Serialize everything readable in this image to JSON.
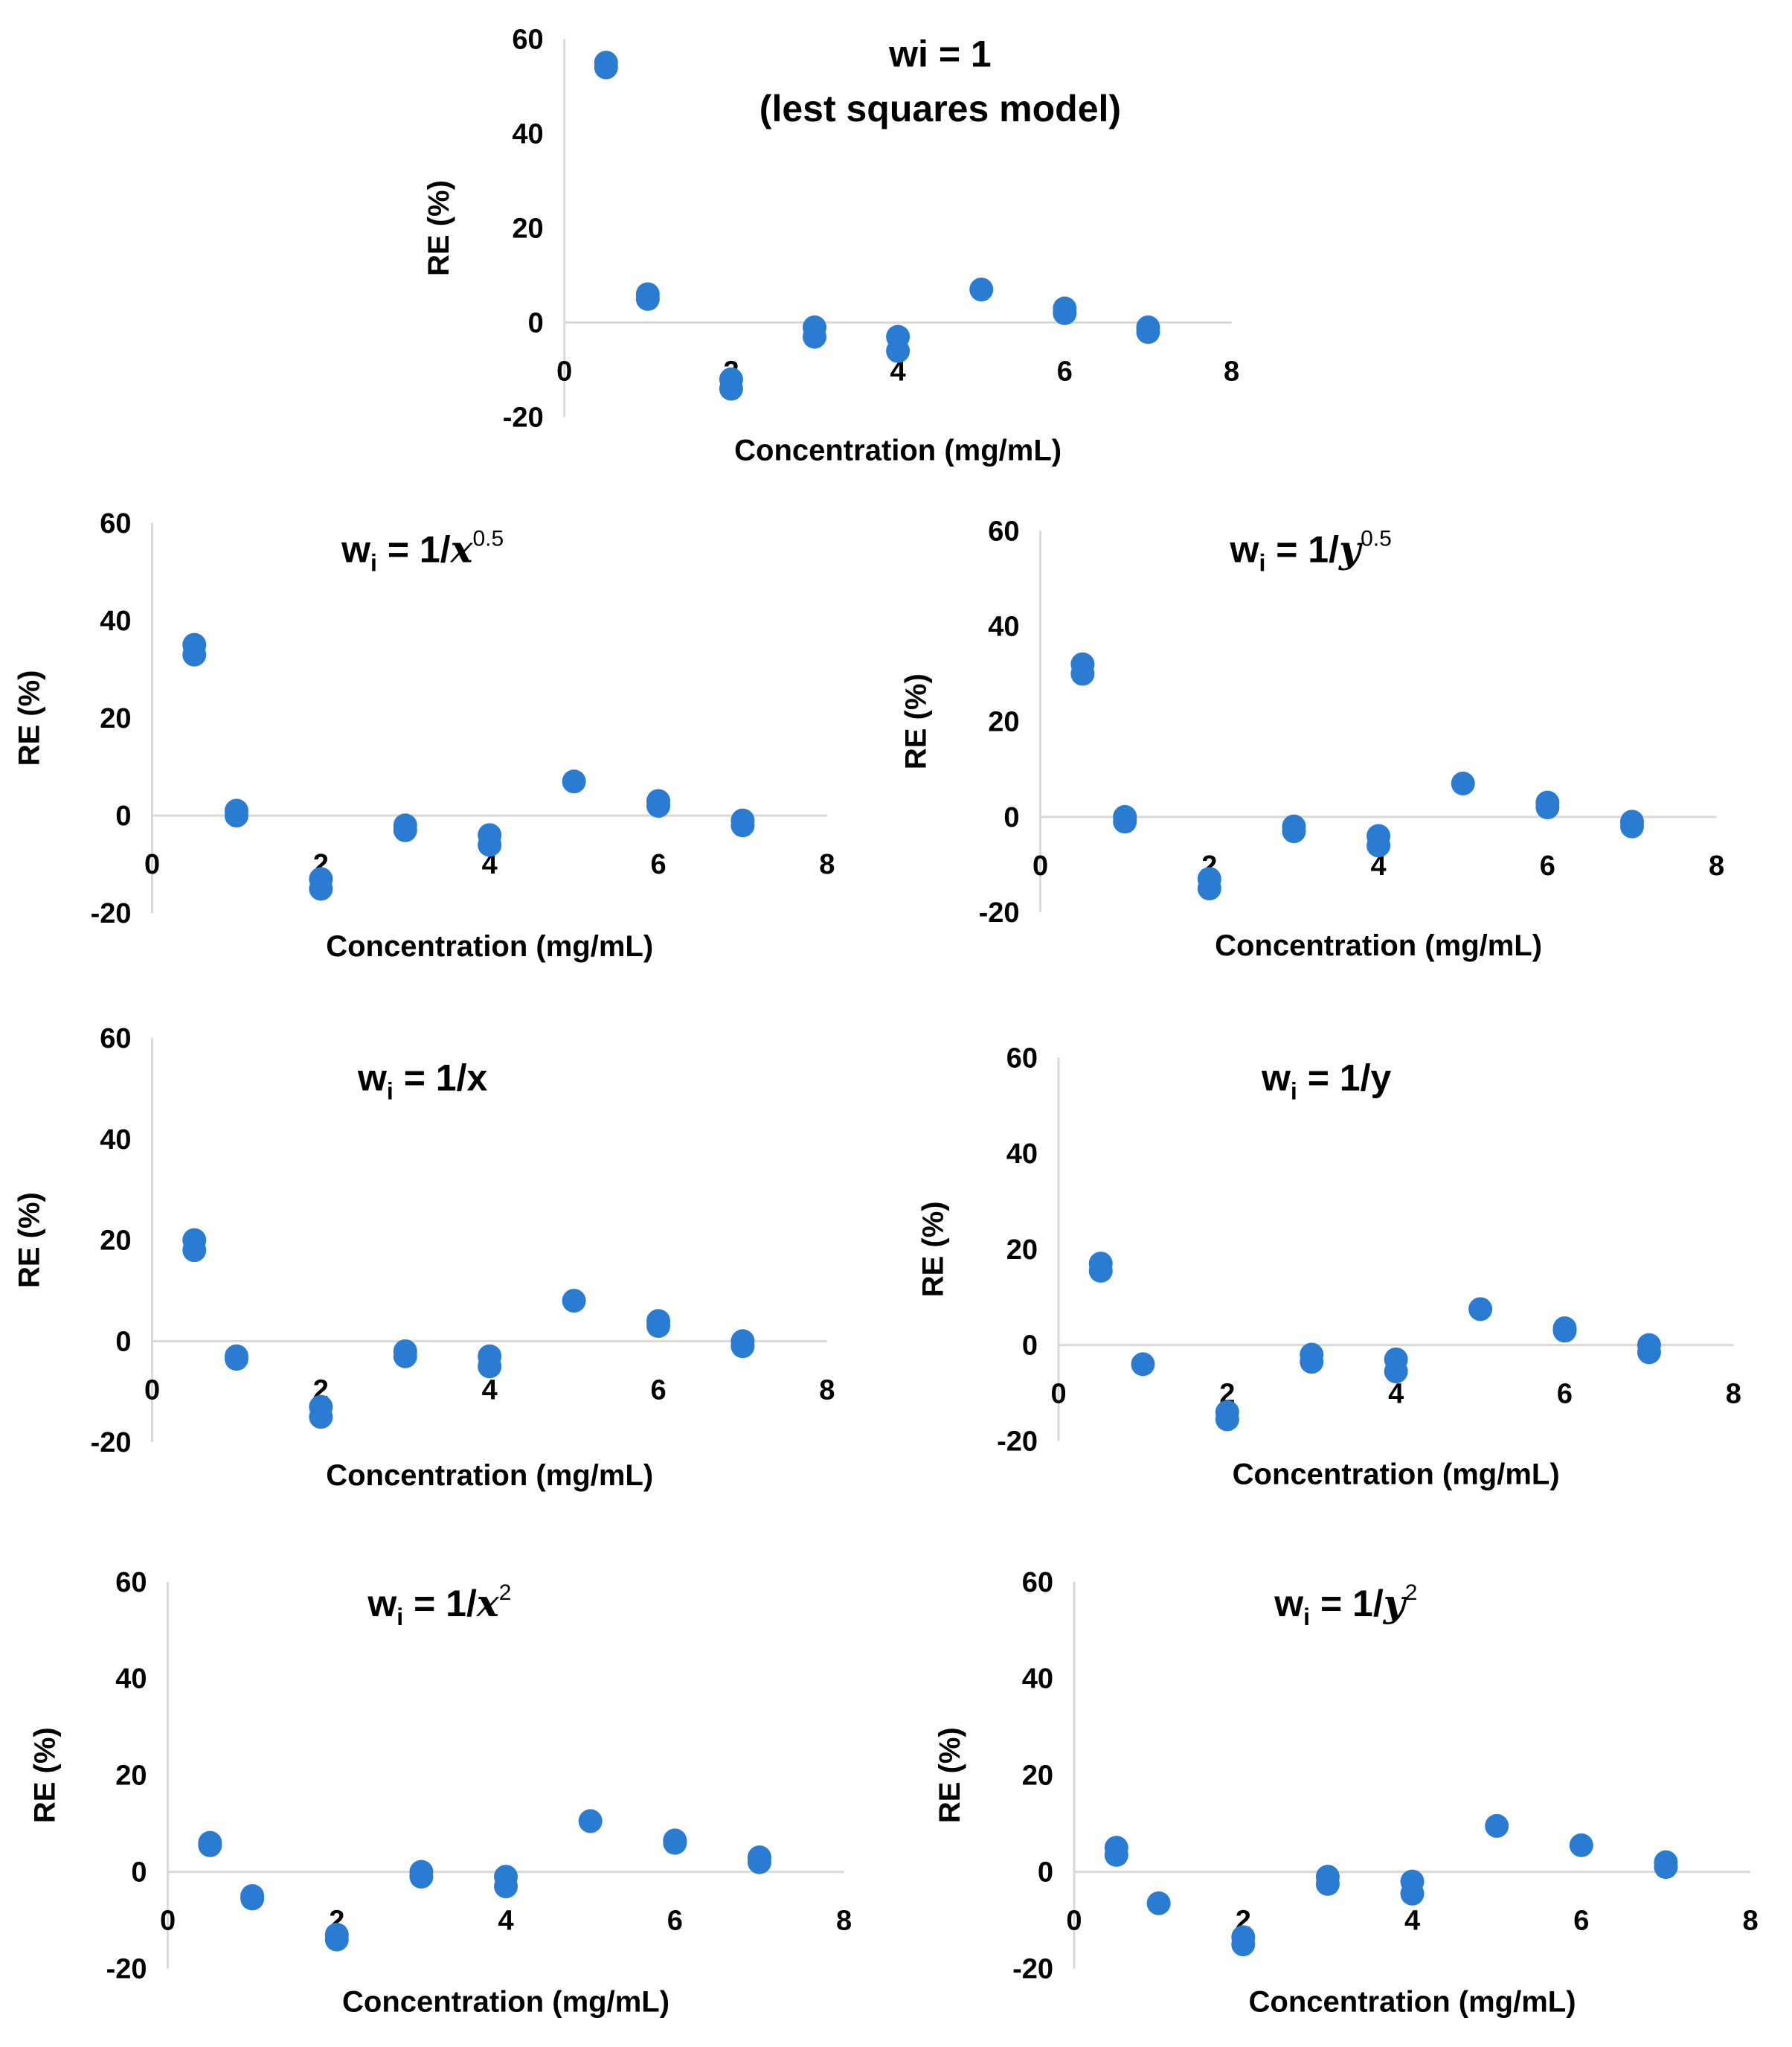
{
  "colors": {
    "point": "#2a7bd2",
    "axis": "#d9d9d9"
  },
  "chart_data": [
    {
      "type": "scatter",
      "title": "wi = 1",
      "subtitle": "(lest squares model)",
      "xlabel": "Concentration (mg/mL)",
      "ylabel": "RE (%)",
      "xlim": [
        0,
        8
      ],
      "ylim": [
        -20,
        60
      ],
      "xticks": [
        "0",
        "2",
        "4",
        "6",
        "8"
      ],
      "yticks": [
        "60",
        "40",
        "20",
        "0",
        "-20"
      ],
      "points": [
        [
          0.5,
          54
        ],
        [
          0.5,
          55
        ],
        [
          1,
          5
        ],
        [
          1,
          6
        ],
        [
          2,
          -12
        ],
        [
          2,
          -14
        ],
        [
          3,
          -1
        ],
        [
          3,
          -3
        ],
        [
          4,
          -3
        ],
        [
          4,
          -6
        ],
        [
          5,
          7
        ],
        [
          6,
          2
        ],
        [
          6,
          3
        ],
        [
          7,
          -1
        ],
        [
          7,
          -2
        ]
      ]
    },
    {
      "type": "scatter",
      "title": "wi = 1/x0.5",
      "title_parts": {
        "w": "w",
        "i": "i",
        "eq": " = 1/",
        "var": "x",
        "exp": "0.5"
      },
      "xlabel": "Concentration (mg/mL)",
      "ylabel": "RE (%)",
      "xlim": [
        0,
        8
      ],
      "ylim": [
        -20,
        60
      ],
      "xticks": [
        "0",
        "2",
        "4",
        "6",
        "8"
      ],
      "yticks": [
        "60",
        "40",
        "20",
        "0",
        "-20"
      ],
      "points": [
        [
          0.5,
          35
        ],
        [
          0.5,
          33
        ],
        [
          1,
          1
        ],
        [
          1,
          0
        ],
        [
          2,
          -13
        ],
        [
          2,
          -15
        ],
        [
          3,
          -2
        ],
        [
          3,
          -3
        ],
        [
          4,
          -4
        ],
        [
          4,
          -6
        ],
        [
          5,
          7
        ],
        [
          6,
          3
        ],
        [
          6,
          2
        ],
        [
          7,
          -1
        ],
        [
          7,
          -2
        ]
      ]
    },
    {
      "type": "scatter",
      "title": "wi = 1/y0.5",
      "title_parts": {
        "w": "w",
        "i": "i",
        "eq": " = 1/",
        "var": "y",
        "exp": "0.5"
      },
      "xlabel": "Concentration (mg/mL)",
      "ylabel": "RE (%)",
      "xlim": [
        0,
        8
      ],
      "ylim": [
        -20,
        60
      ],
      "xticks": [
        "0",
        "2",
        "4",
        "6",
        "8"
      ],
      "yticks": [
        "60",
        "40",
        "20",
        "0",
        "-20"
      ],
      "points": [
        [
          0.5,
          32
        ],
        [
          0.5,
          30
        ],
        [
          1,
          0
        ],
        [
          1,
          -1
        ],
        [
          2,
          -13
        ],
        [
          2,
          -15
        ],
        [
          3,
          -2
        ],
        [
          3,
          -3
        ],
        [
          4,
          -4
        ],
        [
          4,
          -6
        ],
        [
          5,
          7
        ],
        [
          6,
          2
        ],
        [
          6,
          3
        ],
        [
          7,
          -1
        ],
        [
          7,
          -2
        ]
      ]
    },
    {
      "type": "scatter",
      "title": "wi = 1/x",
      "title_parts": {
        "w": "w",
        "i": "i",
        "eq": " = 1/x",
        "var": "",
        "exp": ""
      },
      "xlabel": "Concentration (mg/mL)",
      "ylabel": "RE (%)",
      "xlim": [
        0,
        8
      ],
      "ylim": [
        -20,
        60
      ],
      "xticks": [
        "0",
        "2",
        "4",
        "6",
        "8"
      ],
      "yticks": [
        "60",
        "40",
        "20",
        "0",
        "-20"
      ],
      "points": [
        [
          0.5,
          20
        ],
        [
          0.5,
          18
        ],
        [
          1,
          -3
        ],
        [
          1,
          -3.5
        ],
        [
          2,
          -13
        ],
        [
          2,
          -15
        ],
        [
          3,
          -2
        ],
        [
          3,
          -3
        ],
        [
          4,
          -3
        ],
        [
          4,
          -5
        ],
        [
          5,
          8
        ],
        [
          6,
          3
        ],
        [
          6,
          4
        ],
        [
          7,
          0
        ],
        [
          7,
          -1
        ]
      ]
    },
    {
      "type": "scatter",
      "title": "wi = 1/y",
      "title_parts": {
        "w": "w",
        "i": "i",
        "eq": " = 1/y",
        "var": "",
        "exp": ""
      },
      "xlabel": "Concentration (mg/mL)",
      "ylabel": "RE (%)",
      "xlim": [
        0,
        8
      ],
      "ylim": [
        -20,
        60
      ],
      "xticks": [
        "0",
        "2",
        "4",
        "6",
        "8"
      ],
      "yticks": [
        "60",
        "40",
        "20",
        "0",
        "-20"
      ],
      "points": [
        [
          0.5,
          17
        ],
        [
          0.5,
          15.5
        ],
        [
          1,
          -4
        ],
        [
          2,
          -14
        ],
        [
          2,
          -15.5
        ],
        [
          3,
          -2
        ],
        [
          3,
          -3.5
        ],
        [
          4,
          -3
        ],
        [
          4,
          -5.5
        ],
        [
          5,
          7.5
        ],
        [
          6,
          3
        ],
        [
          6,
          3.5
        ],
        [
          7,
          0
        ],
        [
          7,
          -1.5
        ]
      ]
    },
    {
      "type": "scatter",
      "title": "wi = 1/x2",
      "title_parts": {
        "w": "w",
        "i": "i",
        "eq": " = 1/",
        "var": "x",
        "exp": "2"
      },
      "xlabel": "Concentration (mg/mL)",
      "ylabel": "RE (%)",
      "xlim": [
        0,
        8
      ],
      "ylim": [
        -20,
        60
      ],
      "xticks": [
        "0",
        "2",
        "4",
        "6",
        "8"
      ],
      "yticks": [
        "60",
        "40",
        "20",
        "0",
        "-20"
      ],
      "points": [
        [
          0.5,
          6
        ],
        [
          0.5,
          5.5
        ],
        [
          1,
          -5.5
        ],
        [
          1,
          -5
        ],
        [
          2,
          -13
        ],
        [
          2,
          -14
        ],
        [
          3,
          0
        ],
        [
          3,
          -1
        ],
        [
          4,
          -1
        ],
        [
          4,
          -3
        ],
        [
          5,
          10.5
        ],
        [
          6,
          6.5
        ],
        [
          6,
          6
        ],
        [
          7,
          3
        ],
        [
          7,
          2
        ]
      ]
    },
    {
      "type": "scatter",
      "title": "wi = 1/y2",
      "title_parts": {
        "w": "w",
        "i": "i",
        "eq": " = 1/",
        "var": "y",
        "exp": "2"
      },
      "xlabel": "Concentration (mg/mL)",
      "ylabel": "RE (%)",
      "xlim": [
        0,
        8
      ],
      "ylim": [
        -20,
        60
      ],
      "xticks": [
        "0",
        "2",
        "4",
        "6",
        "8"
      ],
      "yticks": [
        "60",
        "40",
        "20",
        "0",
        "-20"
      ],
      "points": [
        [
          0.5,
          5
        ],
        [
          0.5,
          3.5
        ],
        [
          1,
          -6.5
        ],
        [
          2,
          -13.5
        ],
        [
          2,
          -15
        ],
        [
          3,
          -1
        ],
        [
          3,
          -2.5
        ],
        [
          4,
          -2
        ],
        [
          4,
          -4.5
        ],
        [
          5,
          9.5
        ],
        [
          6,
          5.5
        ],
        [
          7,
          2
        ],
        [
          7,
          1
        ]
      ]
    }
  ]
}
